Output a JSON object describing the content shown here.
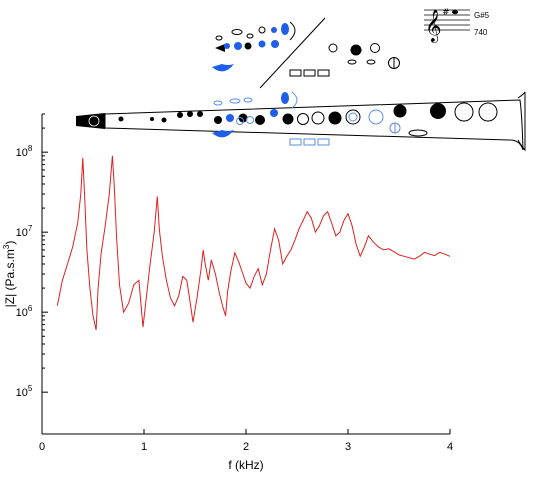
{
  "chart_data": {
    "type": "line",
    "xlabel": "f (kHz)",
    "ylabel_main": "|Z| (Pa.s.m",
    "ylabel_exp": "3",
    "ylabel_close": ")",
    "x_scale": "linear",
    "y_scale": "log",
    "xlim": [
      0,
      4
    ],
    "ylim": [
      30000,
      300000000
    ],
    "x_ticks": [
      {
        "value": 0,
        "label": "0"
      },
      {
        "value": 1,
        "label": "1"
      },
      {
        "value": 2,
        "label": "2"
      },
      {
        "value": 3,
        "label": "3"
      },
      {
        "value": 4,
        "label": "4"
      }
    ],
    "y_ticks": [
      {
        "value": 100000,
        "base": "10",
        "exp": "5"
      },
      {
        "value": 1000000,
        "base": "10",
        "exp": "6"
      },
      {
        "value": 10000000,
        "base": "10",
        "exp": "7"
      },
      {
        "value": 100000000,
        "base": "10",
        "exp": "8"
      }
    ],
    "grid": false,
    "line_color": "#e02020",
    "series": [
      {
        "x": [
          0.15,
          0.2,
          0.25,
          0.3,
          0.35,
          0.38,
          0.4,
          0.42,
          0.44,
          0.47,
          0.5,
          0.53,
          0.55,
          0.58,
          0.62,
          0.66,
          0.69,
          0.71,
          0.73,
          0.76,
          0.8,
          0.85,
          0.9,
          0.95,
          0.99,
          1.02,
          1.06,
          1.1,
          1.13,
          1.15,
          1.18,
          1.22,
          1.26,
          1.3,
          1.34,
          1.38,
          1.42,
          1.45,
          1.48,
          1.52,
          1.56,
          1.58,
          1.6,
          1.63,
          1.66,
          1.7,
          1.74,
          1.77,
          1.8,
          1.82,
          1.85,
          1.89,
          1.93,
          1.97,
          2.0,
          2.04,
          2.08,
          2.12,
          2.16,
          2.2,
          2.24,
          2.28,
          2.32,
          2.36,
          2.4,
          2.44,
          2.48,
          2.52,
          2.56,
          2.6,
          2.64,
          2.68,
          2.72,
          2.76,
          2.8,
          2.84,
          2.88,
          2.92,
          2.96,
          3.0,
          3.04,
          3.08,
          3.12,
          3.16,
          3.2,
          3.25,
          3.3,
          3.35,
          3.4,
          3.45,
          3.5,
          3.55,
          3.6,
          3.65,
          3.7,
          3.75,
          3.8,
          3.85,
          3.9,
          3.95,
          4.0
        ],
        "y": [
          1200000,
          2500000,
          4000000,
          6500000,
          13000000,
          30000000,
          85000000,
          25000000,
          6000000,
          2000000,
          900000,
          600000,
          2000000,
          5500000,
          12000000,
          30000000,
          90000000,
          35000000,
          9000000,
          2200000,
          1000000,
          1300000,
          2200000,
          2500000,
          650000,
          1400000,
          4000000,
          10000000,
          28000000,
          11000000,
          5000000,
          2500000,
          1500000,
          1200000,
          1600000,
          2800000,
          2500000,
          1400000,
          750000,
          1500000,
          3500000,
          6000000,
          4000000,
          2500000,
          4500000,
          3000000,
          1700000,
          1200000,
          900000,
          1800000,
          3200000,
          5500000,
          4200000,
          3000000,
          2300000,
          2000000,
          2800000,
          3500000,
          2200000,
          3000000,
          6000000,
          11000000,
          8000000,
          4000000,
          5000000,
          6000000,
          8000000,
          11000000,
          14000000,
          18000000,
          15000000,
          10000000,
          12000000,
          16000000,
          18000000,
          13000000,
          9000000,
          10000000,
          14000000,
          17000000,
          12000000,
          7000000,
          5000000,
          6500000,
          9000000,
          7500000,
          6500000,
          6000000,
          6200000,
          5700000,
          5200000,
          5000000,
          4800000,
          4600000,
          5000000,
          5600000,
          5300000,
          5100000,
          5600000,
          5300000,
          5000000
        ]
      }
    ],
    "note": {
      "name": "G#5",
      "number": "740"
    }
  }
}
